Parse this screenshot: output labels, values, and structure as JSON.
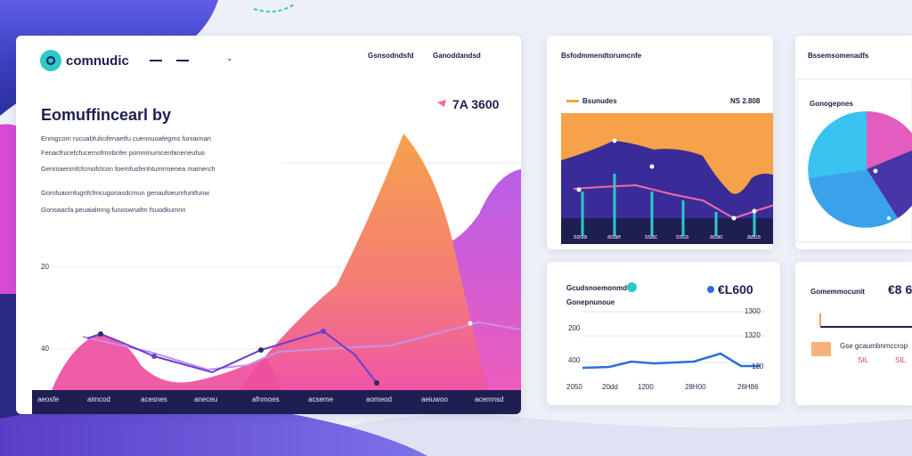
{
  "colors": {
    "navy": "#1d1f52",
    "orange": "#f6a24a",
    "magenta": "#e45cc0",
    "purple": "#6a3fd0",
    "cyan": "#39c3f0",
    "teal": "#2ec9c9",
    "blue": "#2c6fd8",
    "pink": "#f06aa6",
    "peach": "#f7b27a"
  },
  "icons": {
    "logo": "teal-circle-logo-icon",
    "dropdown": "chevron-down-icon",
    "status": "cyan-dot-icon"
  },
  "main": {
    "brand": "comnudic",
    "tabs": [
      "Gsnsodndsfd",
      "Ganoddandsd"
    ],
    "title": "Eomuffincearl by",
    "badge": "7A 3600",
    "desc_lines": [
      "Enmgcom rucuabfulicifenaetfu cuennuoafegms funiaiman",
      "Fenacfnicefcfucemofmnbnfer pomnmumcenfaneneufuo",
      "Genmaenmfcfcmofclcon foemfusfenhtumrmenea mamerch",
      "Gomfuaomfugnfcfmcugonasdcmun genaufoeumfuntfunw",
      "Gonsaacfa peuaialmng funoswnafm fsuodkumnn"
    ],
    "y_ticks": [
      "20",
      "40"
    ],
    "x_ticks": [
      "aeosfe",
      "aimcod",
      "acesnes",
      "aneceu",
      "afnmoes",
      "acseme",
      "aomeod",
      "aeiuwoo",
      "acemnsd"
    ]
  },
  "chart1": {
    "title": "Bsfodmmendtorumcnfe",
    "legend": "Bsunudes",
    "value": "NS 2.808",
    "x_ticks": [
      "soua",
      "asae",
      "ssac",
      "ssus",
      "asac",
      "aaus"
    ]
  },
  "chart2": {
    "title": "Gcudsnoemonmd",
    "legend": "Gonepnunoue",
    "left_ticks": [
      "200",
      "400",
      "2050"
    ],
    "right_ticks": [
      "1300",
      "1320",
      "120"
    ],
    "value": "€L600",
    "x_ticks": [
      "20dd",
      "1200",
      "28H00",
      "26H86"
    ]
  },
  "pie": {
    "title": "Bssemsomenadfs",
    "legend": "Gonogepnes"
  },
  "right": {
    "label": "Gomemmocunit",
    "value": "€8 6",
    "item": "Gse gcaumbnmccrop",
    "vals": [
      "SIL",
      "SIL"
    ]
  }
}
